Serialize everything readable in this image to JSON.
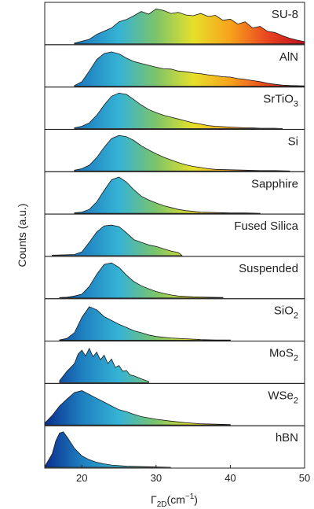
{
  "chart_data": {
    "type": "area",
    "title": "",
    "xlabel": {
      "main": "Γ",
      "sub": "2D",
      "unit_pre": "(cm",
      "unit_sup": "−1",
      "unit_post": ")"
    },
    "ylabel": "Counts (a.u.)",
    "xlim": [
      15,
      50
    ],
    "xticks": [
      20,
      30,
      40,
      50
    ],
    "colormap": [
      "#0a2f8f",
      "#1e7fc0",
      "#35b3d4",
      "#7cc46a",
      "#e6e02a",
      "#f7a21c",
      "#e8451f",
      "#c0101f"
    ],
    "colormap_range": [
      15,
      50
    ],
    "series": [
      {
        "name": "SU-8",
        "name_sub": "",
        "x": [
          19,
          21,
          22,
          24,
          25,
          26,
          27,
          28,
          29,
          30,
          31,
          32,
          33,
          34,
          35,
          36,
          37,
          38,
          39,
          40,
          41,
          42,
          43,
          44,
          45,
          46,
          47,
          48,
          49,
          50
        ],
        "y": [
          0.02,
          0.12,
          0.25,
          0.42,
          0.58,
          0.64,
          0.74,
          0.85,
          0.78,
          0.92,
          0.88,
          0.8,
          0.83,
          0.76,
          0.74,
          0.8,
          0.72,
          0.75,
          0.62,
          0.65,
          0.52,
          0.58,
          0.42,
          0.46,
          0.33,
          0.3,
          0.22,
          0.15,
          0.1,
          0.06
        ]
      },
      {
        "name": "AlN",
        "name_sub": "",
        "x": [
          19,
          20,
          21,
          22,
          23,
          24,
          25,
          26,
          27,
          28,
          29,
          30,
          31,
          32,
          33,
          34,
          35,
          36,
          37,
          38,
          39,
          40,
          41,
          42,
          43,
          44,
          45,
          46,
          47,
          48,
          50
        ],
        "y": [
          0.02,
          0.12,
          0.4,
          0.7,
          0.86,
          0.9,
          0.85,
          0.74,
          0.65,
          0.6,
          0.55,
          0.5,
          0.46,
          0.45,
          0.4,
          0.38,
          0.35,
          0.33,
          0.3,
          0.28,
          0.25,
          0.24,
          0.2,
          0.18,
          0.15,
          0.12,
          0.08,
          0.05,
          0.03,
          0.02,
          0.01
        ]
      },
      {
        "name": "SrTiO",
        "name_sub": "3",
        "x": [
          19,
          20,
          21,
          22,
          23,
          24,
          25,
          26,
          27,
          28,
          29,
          30,
          31,
          32,
          33,
          34,
          35,
          36,
          37,
          38,
          39,
          40,
          41,
          42,
          43,
          44,
          45,
          46,
          47
        ],
        "y": [
          0.02,
          0.06,
          0.15,
          0.35,
          0.62,
          0.85,
          0.93,
          0.9,
          0.76,
          0.62,
          0.5,
          0.42,
          0.35,
          0.3,
          0.25,
          0.2,
          0.15,
          0.12,
          0.08,
          0.06,
          0.05,
          0.04,
          0.03,
          0.02,
          0.02,
          0.01,
          0.01,
          0.01,
          0.0
        ]
      },
      {
        "name": "Si",
        "name_sub": "",
        "x": [
          19,
          20,
          21,
          22,
          23,
          24,
          25,
          26,
          27,
          28,
          29,
          30,
          31,
          32,
          33,
          34,
          35,
          36,
          37,
          38,
          40,
          42,
          44,
          46,
          48
        ],
        "y": [
          0.02,
          0.06,
          0.15,
          0.35,
          0.62,
          0.85,
          0.93,
          0.9,
          0.8,
          0.66,
          0.55,
          0.45,
          0.36,
          0.29,
          0.22,
          0.16,
          0.12,
          0.09,
          0.06,
          0.04,
          0.03,
          0.02,
          0.01,
          0.01,
          0.0
        ]
      },
      {
        "name": "Sapphire",
        "name_sub": "",
        "x": [
          19,
          20,
          21,
          22,
          23,
          24,
          25,
          26,
          27,
          28,
          29,
          30,
          31,
          32,
          33,
          34,
          35,
          36,
          38,
          40,
          42,
          44
        ],
        "y": [
          0.01,
          0.03,
          0.1,
          0.3,
          0.6,
          0.88,
          0.95,
          0.82,
          0.62,
          0.45,
          0.35,
          0.27,
          0.2,
          0.15,
          0.1,
          0.07,
          0.05,
          0.03,
          0.02,
          0.01,
          0.01,
          0.0
        ]
      },
      {
        "name": "Fused Silica",
        "name_sub": "",
        "x": [
          16,
          19,
          20,
          21,
          22,
          23,
          24,
          25,
          26,
          27,
          28,
          29,
          30,
          31,
          32,
          33,
          33.5
        ],
        "y": [
          0.01,
          0.03,
          0.1,
          0.35,
          0.62,
          0.78,
          0.8,
          0.76,
          0.6,
          0.42,
          0.35,
          0.28,
          0.24,
          0.18,
          0.12,
          0.08,
          0.0
        ]
      },
      {
        "name": "Suspended",
        "name_sub": "",
        "x": [
          17,
          18,
          19,
          20,
          21,
          22,
          23,
          24,
          25,
          26,
          27,
          28,
          29,
          30,
          31,
          32,
          33,
          35,
          37,
          39
        ],
        "y": [
          0.01,
          0.02,
          0.05,
          0.1,
          0.3,
          0.62,
          0.88,
          0.92,
          0.8,
          0.6,
          0.43,
          0.32,
          0.24,
          0.17,
          0.12,
          0.08,
          0.05,
          0.03,
          0.02,
          0.01
        ]
      },
      {
        "name": "SiO",
        "name_sub": "2",
        "x": [
          17,
          18,
          19,
          20,
          21,
          22,
          23,
          24,
          25,
          26,
          27,
          28,
          29,
          30,
          32,
          34,
          36,
          38,
          40
        ],
        "y": [
          0.01,
          0.05,
          0.2,
          0.6,
          0.88,
          0.8,
          0.62,
          0.52,
          0.42,
          0.34,
          0.25,
          0.2,
          0.14,
          0.1,
          0.06,
          0.04,
          0.02,
          0.01,
          0.01
        ]
      },
      {
        "name": "MoS",
        "name_sub": "2",
        "x": [
          17,
          18,
          19,
          19.5,
          20,
          20.5,
          21,
          21.5,
          22,
          22.5,
          23,
          23.5,
          24,
          24.5,
          25,
          25.5,
          26,
          26.5,
          27,
          28,
          29
        ],
        "y": [
          0.05,
          0.3,
          0.5,
          0.75,
          0.85,
          0.7,
          0.9,
          0.68,
          0.8,
          0.6,
          0.72,
          0.5,
          0.62,
          0.4,
          0.45,
          0.3,
          0.32,
          0.2,
          0.18,
          0.1,
          0.03
        ]
      },
      {
        "name": "WSe",
        "name_sub": "2",
        "x": [
          15,
          16,
          17,
          18,
          19,
          20,
          21,
          22,
          23,
          24,
          25,
          26,
          27,
          28,
          30,
          32,
          34,
          36,
          38,
          40
        ],
        "y": [
          0.05,
          0.25,
          0.5,
          0.68,
          0.85,
          0.9,
          0.8,
          0.7,
          0.6,
          0.5,
          0.4,
          0.35,
          0.28,
          0.22,
          0.15,
          0.1,
          0.06,
          0.03,
          0.02,
          0.01
        ]
      },
      {
        "name": "hBN",
        "name_sub": "",
        "x": [
          15,
          16,
          16.5,
          17,
          17.5,
          18,
          19,
          20,
          21,
          22,
          23,
          24,
          26,
          28,
          30,
          32
        ],
        "y": [
          0.02,
          0.35,
          0.7,
          0.9,
          0.93,
          0.8,
          0.5,
          0.3,
          0.2,
          0.13,
          0.09,
          0.06,
          0.03,
          0.02,
          0.01,
          0.0
        ]
      }
    ]
  }
}
